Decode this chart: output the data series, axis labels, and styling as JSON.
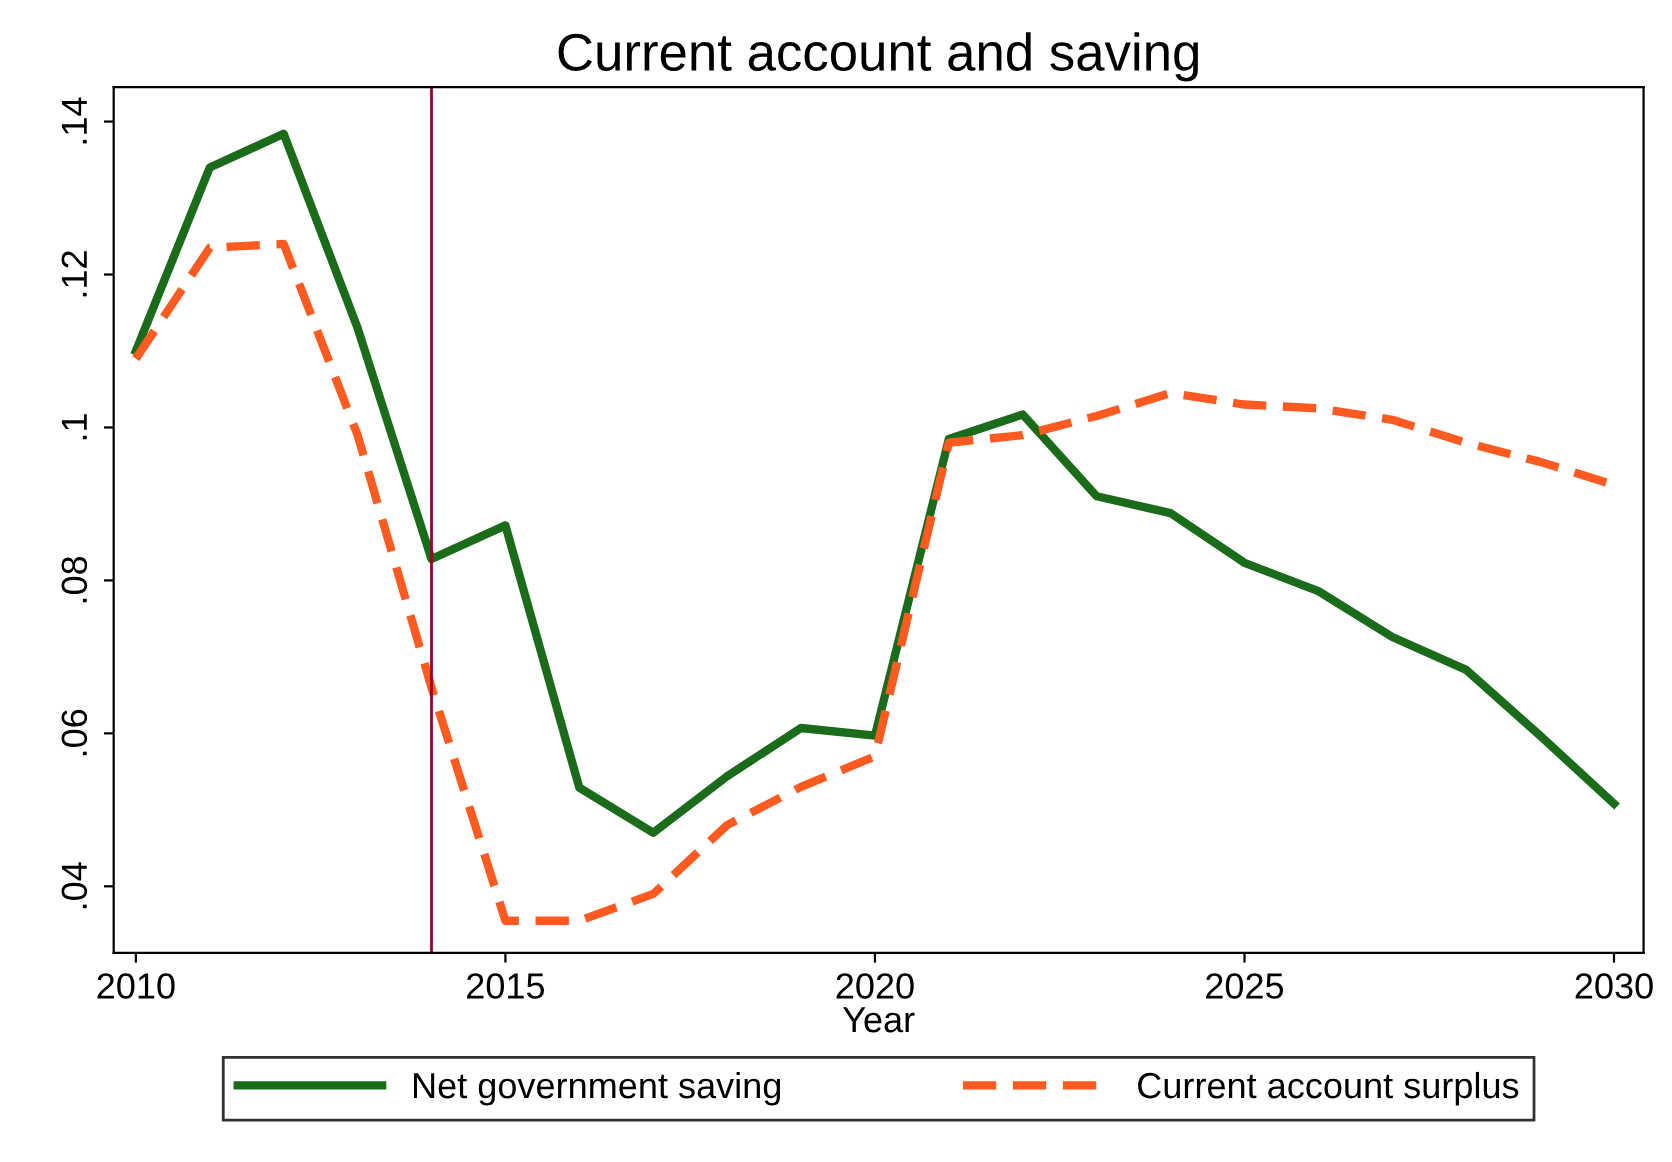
{
  "chart_data": {
    "type": "line",
    "title": "Current account and saving",
    "xlabel": "Year",
    "x": [
      2010,
      2011,
      2012,
      2013,
      2014,
      2015,
      2016,
      2017,
      2018,
      2019,
      2020,
      2021,
      2022,
      2023,
      2024,
      2025,
      2026,
      2027,
      2028,
      2029,
      2030
    ],
    "series": [
      {
        "name": "Net government saving",
        "color": "#1a6b1a",
        "line_style": "solid",
        "values": [
          0.11,
          0.134,
          0.1384,
          0.113,
          0.0828,
          0.0872,
          0.0529,
          0.047,
          0.0544,
          0.0607,
          0.0597,
          0.0985,
          0.1017,
          0.091,
          0.0888,
          0.0823,
          0.0786,
          0.0726,
          0.0683,
          0.0597,
          0.0508
        ]
      },
      {
        "name": "Current account surplus",
        "color": "#ff5a1f",
        "line_style": "dashed",
        "values": [
          0.109,
          0.1235,
          0.124,
          0.099,
          0.066,
          0.0355,
          0.0355,
          0.039,
          0.048,
          0.053,
          0.057,
          0.098,
          0.099,
          0.1015,
          0.1045,
          0.103,
          0.1025,
          0.101,
          0.098,
          0.0955,
          0.0925
        ]
      }
    ],
    "xlim": [
      2009.7,
      2030.4
    ],
    "ylim": [
      0.0313,
      0.1445
    ],
    "xticks": [
      2010,
      2015,
      2020,
      2025,
      2030
    ],
    "yticks": [
      {
        "value": 0.04,
        "label": ".04"
      },
      {
        "value": 0.06,
        "label": ".06"
      },
      {
        "value": 0.08,
        "label": ".08"
      },
      {
        "value": 0.1,
        "label": ".1"
      },
      {
        "value": 0.12,
        "label": ".12"
      },
      {
        "value": 0.14,
        "label": ".14"
      }
    ],
    "ref_lines": [
      {
        "axis": "x",
        "value": 2014,
        "color": "#990033"
      }
    ],
    "grid": false,
    "marker": "none",
    "legend": "bottom"
  }
}
